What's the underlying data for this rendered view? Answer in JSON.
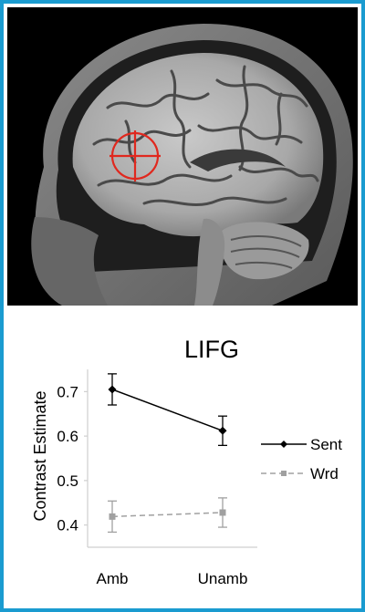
{
  "chart_data": {
    "type": "line",
    "title": "LIFG",
    "xlabel": "",
    "ylabel": "Contrast Estimate",
    "categories": [
      "Amb",
      "Unamb"
    ],
    "ylim": [
      0.35,
      0.75
    ],
    "yticks": [
      0.4,
      0.5,
      0.6,
      0.7
    ],
    "yticklabels": [
      "0.4",
      "0.5",
      "0.6",
      "0.7"
    ],
    "series": [
      {
        "name": "Sent",
        "values": [
          0.705,
          0.612
        ],
        "error": [
          0.035,
          0.033
        ],
        "color": "#000000",
        "marker": "diamond",
        "line_style": "solid"
      },
      {
        "name": "Wrd",
        "values": [
          0.419,
          0.428
        ],
        "error": [
          0.035,
          0.033
        ],
        "color": "#a0a0a0",
        "marker": "square",
        "line_style": "dashed"
      }
    ],
    "grid": false,
    "legend_position": "right"
  },
  "image": {
    "description": "Sagittal MRI slice of head",
    "marker": "red-crosshair-circle",
    "marker_color": "#e0281e"
  },
  "colors": {
    "frame": "#1a9bd0",
    "sent": "#000000",
    "wrd": "#a0a0a0"
  }
}
